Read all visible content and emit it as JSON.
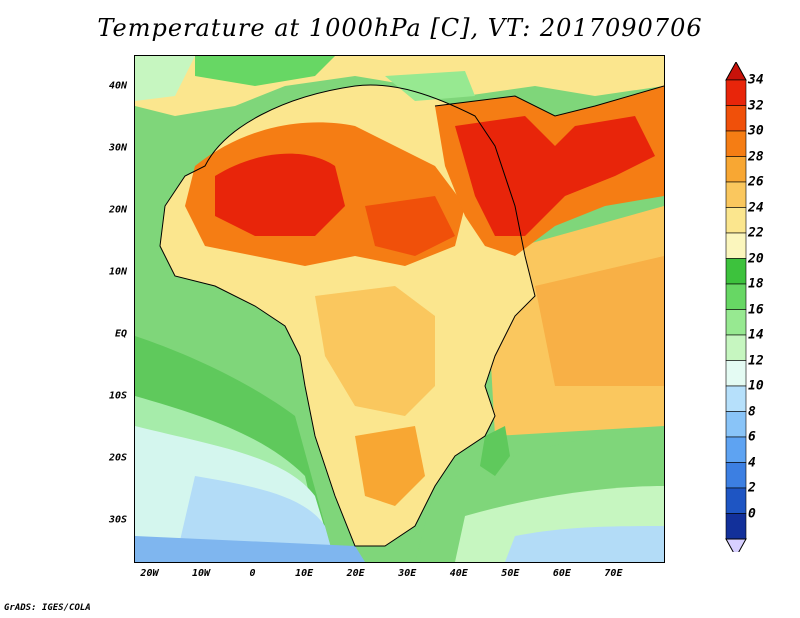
{
  "title": "Temperature at 1000hPa [C], VT: 2017090706",
  "credit": "GrADS: IGES/COLA",
  "map": {
    "lon_range": [
      -23,
      80
    ],
    "lat_range": [
      -37,
      45
    ],
    "y_ticks": [
      {
        "label": "40N",
        "lat": 40
      },
      {
        "label": "30N",
        "lat": 30
      },
      {
        "label": "20N",
        "lat": 20
      },
      {
        "label": "10N",
        "lat": 10
      },
      {
        "label": "EQ",
        "lat": 0
      },
      {
        "label": "10S",
        "lat": -10
      },
      {
        "label": "20S",
        "lat": -20
      },
      {
        "label": "30S",
        "lat": -30
      }
    ],
    "x_ticks": [
      {
        "label": "20W",
        "lon": -20
      },
      {
        "label": "10W",
        "lon": -10
      },
      {
        "label": "0",
        "lon": 0
      },
      {
        "label": "10E",
        "lon": 10
      },
      {
        "label": "20E",
        "lon": 20
      },
      {
        "label": "30E",
        "lon": 30
      },
      {
        "label": "40E",
        "lon": 40
      },
      {
        "label": "50E",
        "lon": 50
      },
      {
        "label": "60E",
        "lon": 60
      },
      {
        "label": "70E",
        "lon": 70
      }
    ]
  },
  "colorbar": {
    "labels": [
      "34",
      "32",
      "30",
      "28",
      "26",
      "24",
      "22",
      "20",
      "18",
      "16",
      "14",
      "12",
      "10",
      "8",
      "6",
      "4",
      "2",
      "0"
    ],
    "colors": [
      "#e8250a",
      "#f0500a",
      "#f57d14",
      "#f8a733",
      "#fac75e",
      "#fbe68e",
      "#fbf6bd",
      "#3dc23d",
      "#67d764",
      "#97e991",
      "#c6f6c0",
      "#e4fbf3",
      "#b6e0fb",
      "#89c4f8",
      "#5ea3f2",
      "#3c7fe2",
      "#1e55c3",
      "#12309a"
    ],
    "top_color": "#c8120a",
    "bottom_color": "#d8d0ff"
  }
}
